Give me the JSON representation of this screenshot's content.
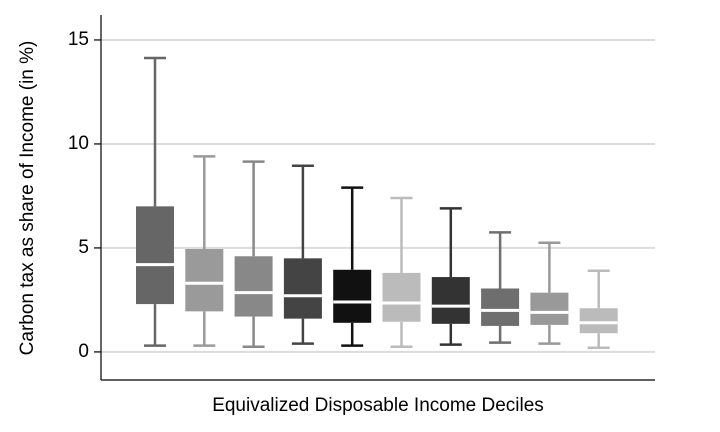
{
  "chart_data": {
    "type": "box",
    "x_label": "Equivalized Disposable Income Deciles",
    "y_label": "Carbon tax as share of Income (in %)",
    "ylim": [
      -1.35,
      16.2
    ],
    "yticks": [
      0,
      5,
      10,
      15
    ],
    "grid": true,
    "boxes": [
      {
        "low": 0.3,
        "q1": 2.3,
        "median": 4.2,
        "q3": 7.0,
        "high": 14.13,
        "color": "#666666"
      },
      {
        "low": 0.3,
        "q1": 1.95,
        "median": 3.3,
        "q3": 4.95,
        "high": 9.4,
        "color": "#9a9a9a"
      },
      {
        "low": 0.25,
        "q1": 1.7,
        "median": 2.85,
        "q3": 4.6,
        "high": 9.15,
        "color": "#888888"
      },
      {
        "low": 0.4,
        "q1": 1.6,
        "median": 2.7,
        "q3": 4.5,
        "high": 8.95,
        "color": "#444444"
      },
      {
        "low": 0.3,
        "q1": 1.4,
        "median": 2.4,
        "q3": 3.95,
        "high": 7.9,
        "color": "#111111"
      },
      {
        "low": 0.25,
        "q1": 1.45,
        "median": 2.35,
        "q3": 3.8,
        "high": 7.4,
        "color": "#bbbbbb"
      },
      {
        "low": 0.35,
        "q1": 1.35,
        "median": 2.2,
        "q3": 3.6,
        "high": 6.9,
        "color": "#333333"
      },
      {
        "low": 0.45,
        "q1": 1.25,
        "median": 2.0,
        "q3": 3.05,
        "high": 5.75,
        "color": "#6e6e6e"
      },
      {
        "low": 0.4,
        "q1": 1.3,
        "median": 1.9,
        "q3": 2.85,
        "high": 5.25,
        "color": "#999999"
      },
      {
        "low": 0.2,
        "q1": 0.9,
        "median": 1.4,
        "q3": 2.1,
        "high": 3.9,
        "color": "#bbbbbb"
      }
    ]
  }
}
